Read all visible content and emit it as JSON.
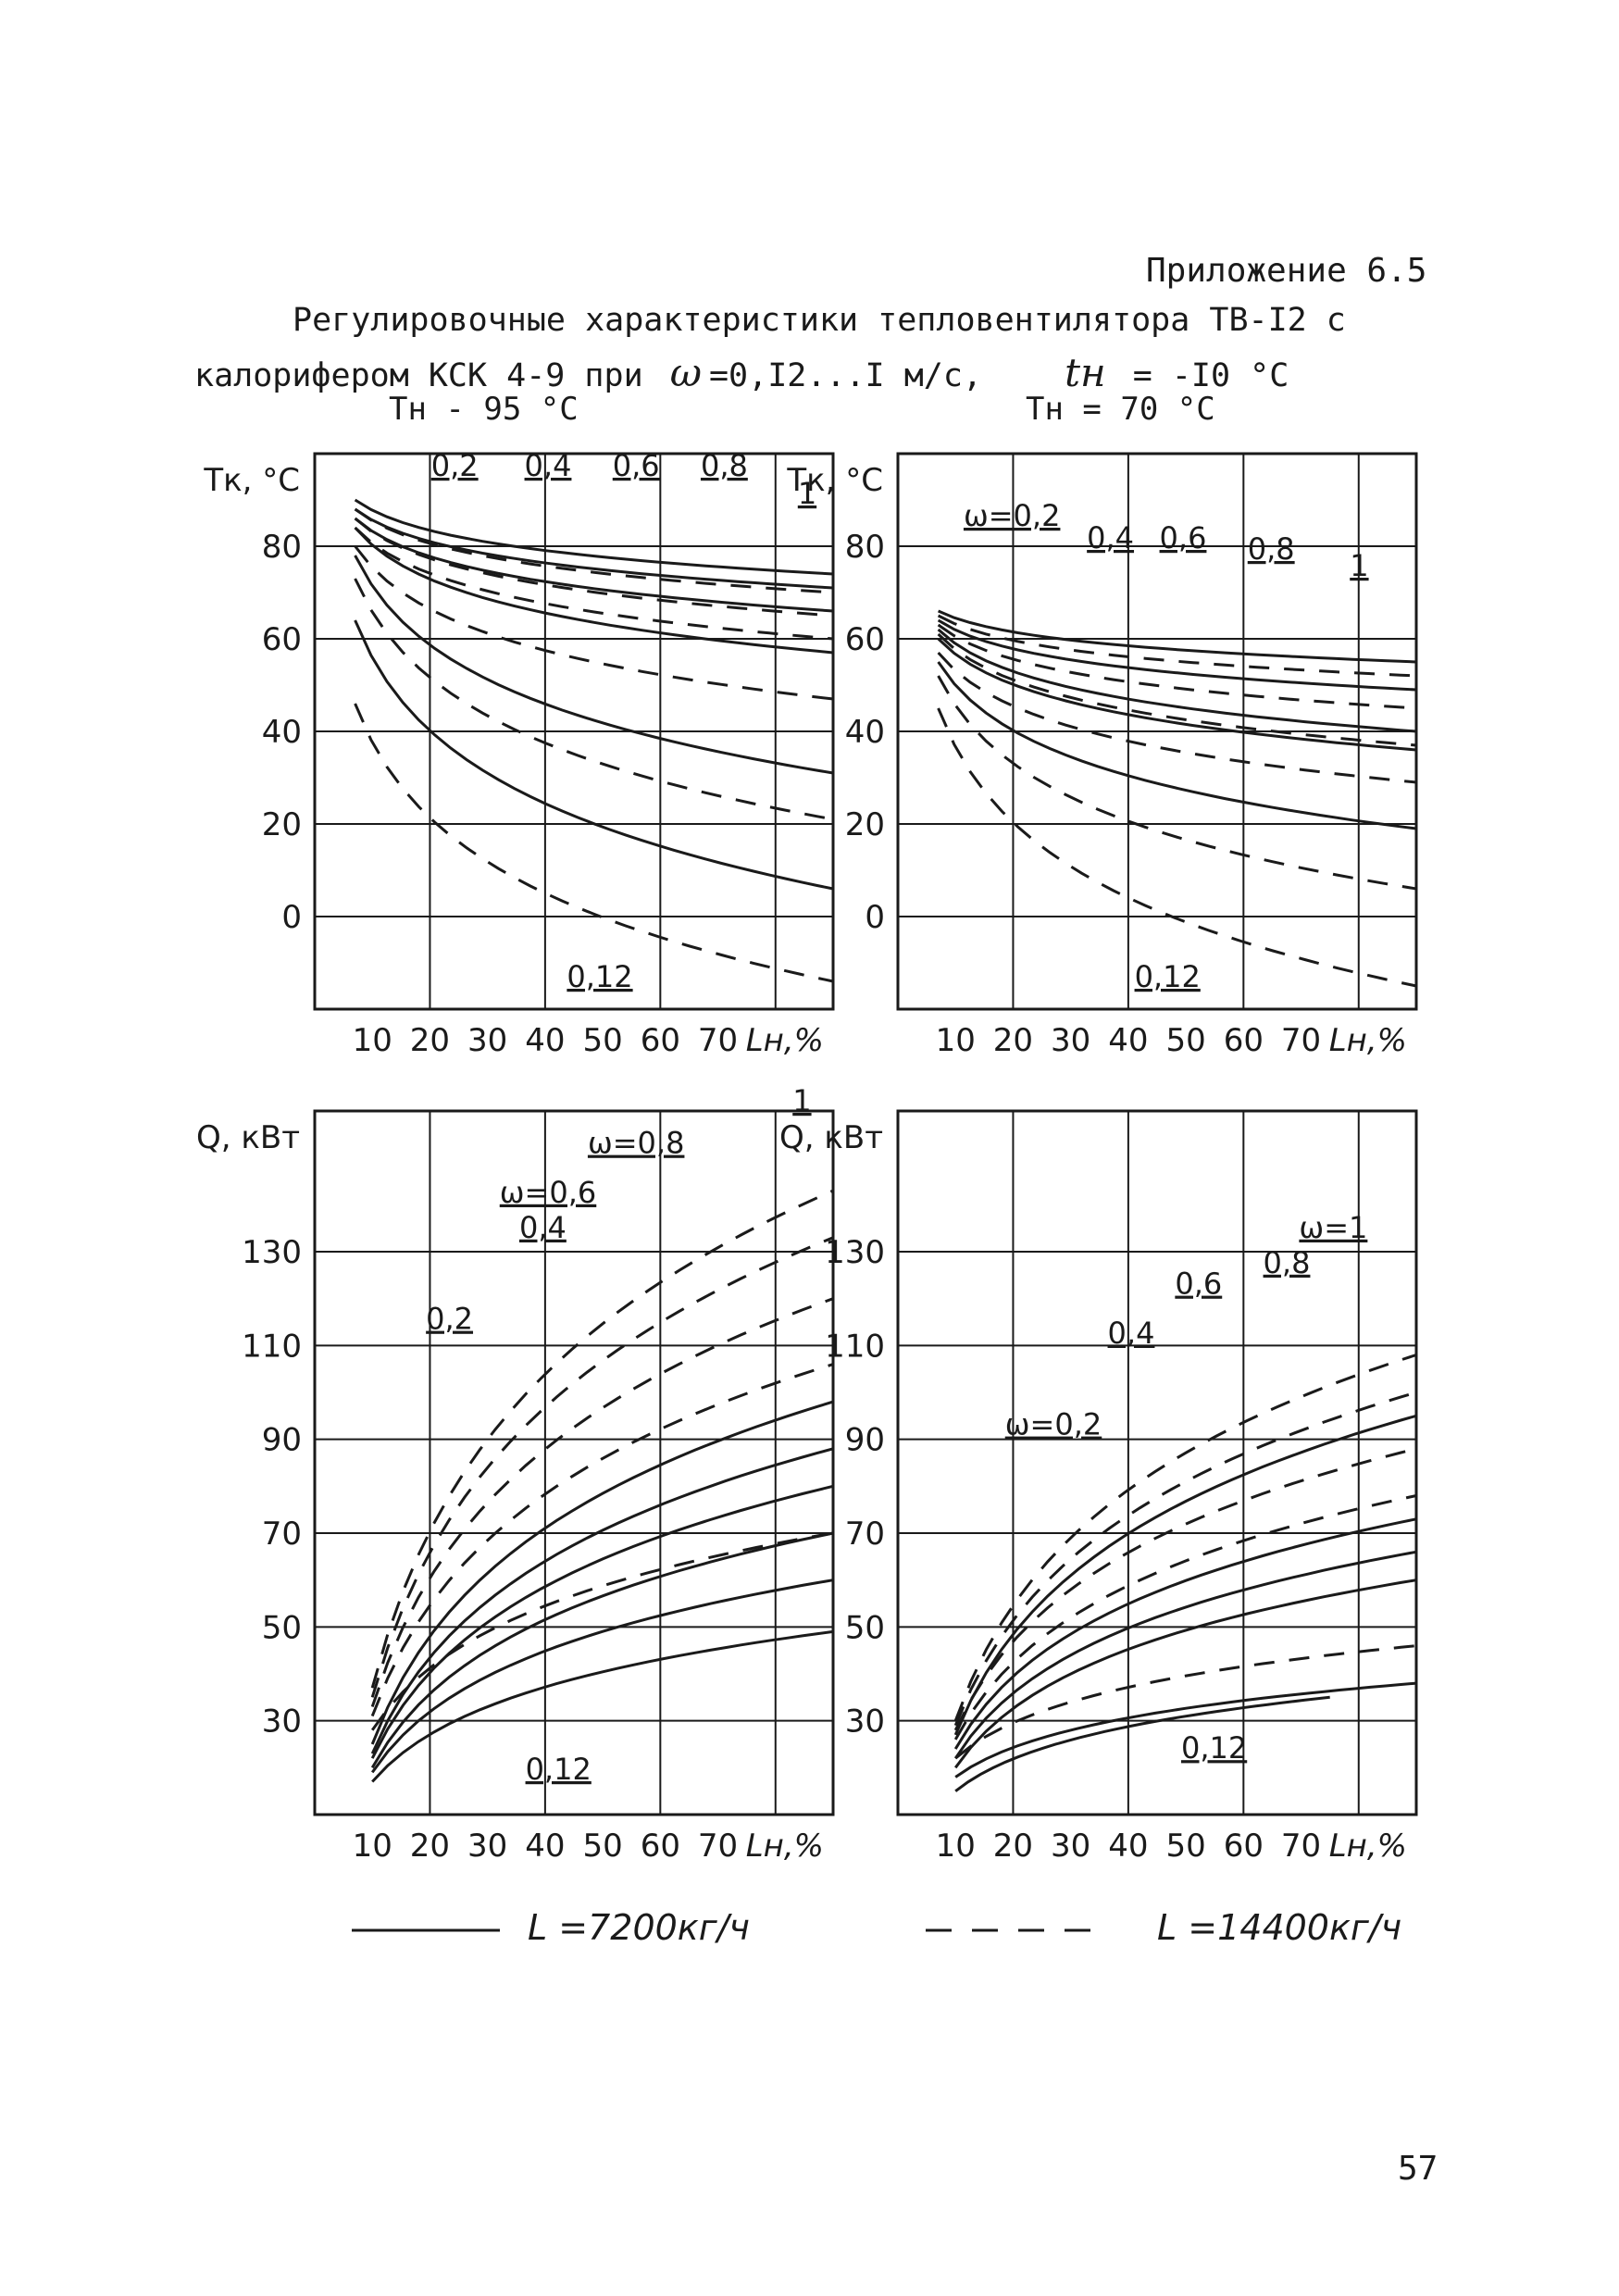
{
  "header": {
    "appendix": "Приложение 6.5",
    "title_line1": "Регулировочные характеристики тепловентилятора ТВ-I2 с",
    "title_line2_prefix": "калорифером КСК 4-9 при",
    "omega_symbol": "ω",
    "omega_range": "=0,I2...I м/с,",
    "tn_symbol": "tн",
    "tn_value": "= -I0 °C",
    "cond_left": "Тн - 95 °C",
    "cond_right": "Тн = 70 °C"
  },
  "page_number": "57",
  "legend": {
    "solid_label": "L =7200кг/ч",
    "dashed_label": "L =14400кг/ч"
  },
  "styles": {
    "ink": "#1a1a1a",
    "paper": "#ffffff"
  },
  "chart_data": [
    {
      "type": "line",
      "position": "top-left",
      "y_axis_label": "Тк, °C",
      "x_axis_label": "Lн,%",
      "xlim": [
        0,
        90
      ],
      "ylim": [
        -20,
        100
      ],
      "x_ticks": [
        "10",
        "20",
        "30",
        "40",
        "50",
        "60",
        "70"
      ],
      "y_ticks": [
        "80",
        "60",
        "40",
        "20",
        "0"
      ],
      "grid": true,
      "curve_labels": [
        "0,2",
        "0,4",
        "0,6",
        "0,8",
        "1",
        "0,12"
      ],
      "series": [
        {
          "name": "1",
          "style": "solid",
          "x": [
            7,
            90
          ],
          "y": [
            90,
            74
          ]
        },
        {
          "name": "1",
          "style": "dashed",
          "x": [
            7,
            90
          ],
          "y": [
            88,
            70
          ]
        },
        {
          "name": "0,8",
          "style": "solid",
          "x": [
            7,
            90
          ],
          "y": [
            88,
            71
          ]
        },
        {
          "name": "0,8",
          "style": "dashed",
          "x": [
            7,
            90
          ],
          "y": [
            86,
            65
          ]
        },
        {
          "name": "0,6",
          "style": "solid",
          "x": [
            7,
            90
          ],
          "y": [
            86,
            66
          ]
        },
        {
          "name": "0,6",
          "style": "dashed",
          "x": [
            7,
            90
          ],
          "y": [
            84,
            60
          ]
        },
        {
          "name": "0,4",
          "style": "solid",
          "x": [
            7,
            90
          ],
          "y": [
            84,
            57
          ]
        },
        {
          "name": "0,4",
          "style": "dashed",
          "x": [
            7,
            90
          ],
          "y": [
            80,
            47
          ]
        },
        {
          "name": "0,2",
          "style": "solid",
          "x": [
            7,
            90
          ],
          "y": [
            78,
            31
          ]
        },
        {
          "name": "0,2",
          "style": "dashed",
          "x": [
            7,
            90
          ],
          "y": [
            73,
            21
          ]
        },
        {
          "name": "0,12",
          "style": "solid",
          "x": [
            7,
            90
          ],
          "y": [
            64,
            6
          ]
        },
        {
          "name": "0,12",
          "style": "dashed",
          "x": [
            7,
            90
          ],
          "y": [
            46,
            -14
          ]
        }
      ]
    },
    {
      "type": "line",
      "position": "top-right",
      "y_axis_label": "Тк, °C",
      "x_axis_label": "Lн,%",
      "xlim": [
        0,
        90
      ],
      "ylim": [
        -20,
        100
      ],
      "x_ticks": [
        "10",
        "20",
        "30",
        "40",
        "50",
        "60",
        "70"
      ],
      "y_ticks": [
        "80",
        "60",
        "40",
        "20",
        "0"
      ],
      "grid": true,
      "curve_labels": [
        "ω=0,2",
        "0,4",
        "0,6",
        "0,8",
        "1",
        "0,12"
      ],
      "series": [
        {
          "name": "1",
          "style": "solid",
          "x": [
            7,
            90
          ],
          "y": [
            66,
            55
          ]
        },
        {
          "name": "1",
          "style": "dashed",
          "x": [
            7,
            90
          ],
          "y": [
            65,
            52
          ]
        },
        {
          "name": "0,8",
          "style": "solid",
          "x": [
            7,
            90
          ],
          "y": [
            64,
            49
          ]
        },
        {
          "name": "0,8",
          "style": "dashed",
          "x": [
            7,
            90
          ],
          "y": [
            63,
            45
          ]
        },
        {
          "name": "0,6",
          "style": "solid",
          "x": [
            7,
            90
          ],
          "y": [
            62,
            40
          ]
        },
        {
          "name": "0,6",
          "style": "dashed",
          "x": [
            7,
            90
          ],
          "y": [
            61,
            37
          ]
        },
        {
          "name": "0,4",
          "style": "solid",
          "x": [
            7,
            90
          ],
          "y": [
            60,
            36
          ]
        },
        {
          "name": "0,4",
          "style": "dashed",
          "x": [
            7,
            90
          ],
          "y": [
            57,
            29
          ]
        },
        {
          "name": "0,2",
          "style": "solid",
          "x": [
            7,
            90
          ],
          "y": [
            55,
            19
          ]
        },
        {
          "name": "0,2",
          "style": "dashed",
          "x": [
            7,
            90
          ],
          "y": [
            52,
            6
          ]
        },
        {
          "name": "0,12",
          "style": "dashed",
          "x": [
            7,
            90
          ],
          "y": [
            45,
            -15
          ]
        }
      ]
    },
    {
      "type": "line",
      "position": "bottom-left",
      "y_axis_label": "Q, кВт",
      "x_axis_label": "Lн,%",
      "xlim": [
        0,
        90
      ],
      "ylim": [
        10,
        160
      ],
      "x_ticks": [
        "10",
        "20",
        "30",
        "40",
        "50",
        "60",
        "70"
      ],
      "y_ticks": [
        "130",
        "110",
        "90",
        "70",
        "50",
        "30"
      ],
      "grid": true,
      "curve_labels": [
        "0,2",
        "0,4",
        "ω=0,6",
        "ω=0,8",
        "1",
        "0,12"
      ],
      "series": [
        {
          "name": "1",
          "style": "dashed",
          "x": [
            10,
            90
          ],
          "y": [
            37,
            143
          ]
        },
        {
          "name": "0,8",
          "style": "dashed",
          "x": [
            10,
            90
          ],
          "y": [
            35,
            133
          ]
        },
        {
          "name": "0,6",
          "style": "dashed",
          "x": [
            10,
            90
          ],
          "y": [
            33,
            120
          ]
        },
        {
          "name": "0,4",
          "style": "dashed",
          "x": [
            10,
            90
          ],
          "y": [
            31,
            106
          ]
        },
        {
          "name": "1",
          "style": "solid",
          "x": [
            10,
            90
          ],
          "y": [
            25,
            98
          ]
        },
        {
          "name": "0,8",
          "style": "solid",
          "x": [
            10,
            90
          ],
          "y": [
            23,
            88
          ]
        },
        {
          "name": "0,6",
          "style": "solid",
          "x": [
            10,
            90
          ],
          "y": [
            22,
            80
          ]
        },
        {
          "name": "0,2",
          "style": "dashed",
          "x": [
            10,
            90
          ],
          "y": [
            28,
            70
          ]
        },
        {
          "name": "0,4",
          "style": "solid",
          "x": [
            10,
            90
          ],
          "y": [
            20,
            70
          ]
        },
        {
          "name": "0,2",
          "style": "solid",
          "x": [
            10,
            90
          ],
          "y": [
            19,
            60
          ]
        },
        {
          "name": "0,12",
          "style": "solid",
          "x": [
            10,
            90
          ],
          "y": [
            17,
            49
          ]
        }
      ]
    },
    {
      "type": "line",
      "position": "bottom-right",
      "y_axis_label": "Q, кВт",
      "x_axis_label": "Lн,%",
      "xlim": [
        0,
        90
      ],
      "ylim": [
        10,
        160
      ],
      "x_ticks": [
        "10",
        "20",
        "30",
        "40",
        "50",
        "60",
        "70"
      ],
      "y_ticks": [
        "130",
        "110",
        "90",
        "70",
        "50",
        "30"
      ],
      "grid": true,
      "curve_labels": [
        "ω=0,2",
        "0,4",
        "0,6",
        "0,8",
        "ω=1",
        "0,12"
      ],
      "series": [
        {
          "name": "1",
          "style": "dashed",
          "x": [
            10,
            90
          ],
          "y": [
            30,
            108
          ]
        },
        {
          "name": "0,8",
          "style": "dashed",
          "x": [
            10,
            90
          ],
          "y": [
            29,
            100
          ]
        },
        {
          "name": "1",
          "style": "solid",
          "x": [
            10,
            90
          ],
          "y": [
            27,
            95
          ]
        },
        {
          "name": "0,6",
          "style": "dashed",
          "x": [
            10,
            90
          ],
          "y": [
            28,
            88
          ]
        },
        {
          "name": "0,4",
          "style": "dashed",
          "x": [
            10,
            90
          ],
          "y": [
            26,
            78
          ]
        },
        {
          "name": "0,8",
          "style": "solid",
          "x": [
            10,
            90
          ],
          "y": [
            24,
            73
          ]
        },
        {
          "name": "0,6",
          "style": "solid",
          "x": [
            10,
            90
          ],
          "y": [
            22,
            66
          ]
        },
        {
          "name": "0,4",
          "style": "solid",
          "x": [
            10,
            90
          ],
          "y": [
            20,
            60
          ]
        },
        {
          "name": "0,2",
          "style": "dashed",
          "x": [
            10,
            90
          ],
          "y": [
            22,
            46
          ]
        },
        {
          "name": "0,2",
          "style": "solid",
          "x": [
            10,
            90
          ],
          "y": [
            18,
            38
          ]
        },
        {
          "name": "0,12",
          "style": "solid",
          "x": [
            10,
            75
          ],
          "y": [
            15,
            35
          ]
        }
      ]
    }
  ]
}
